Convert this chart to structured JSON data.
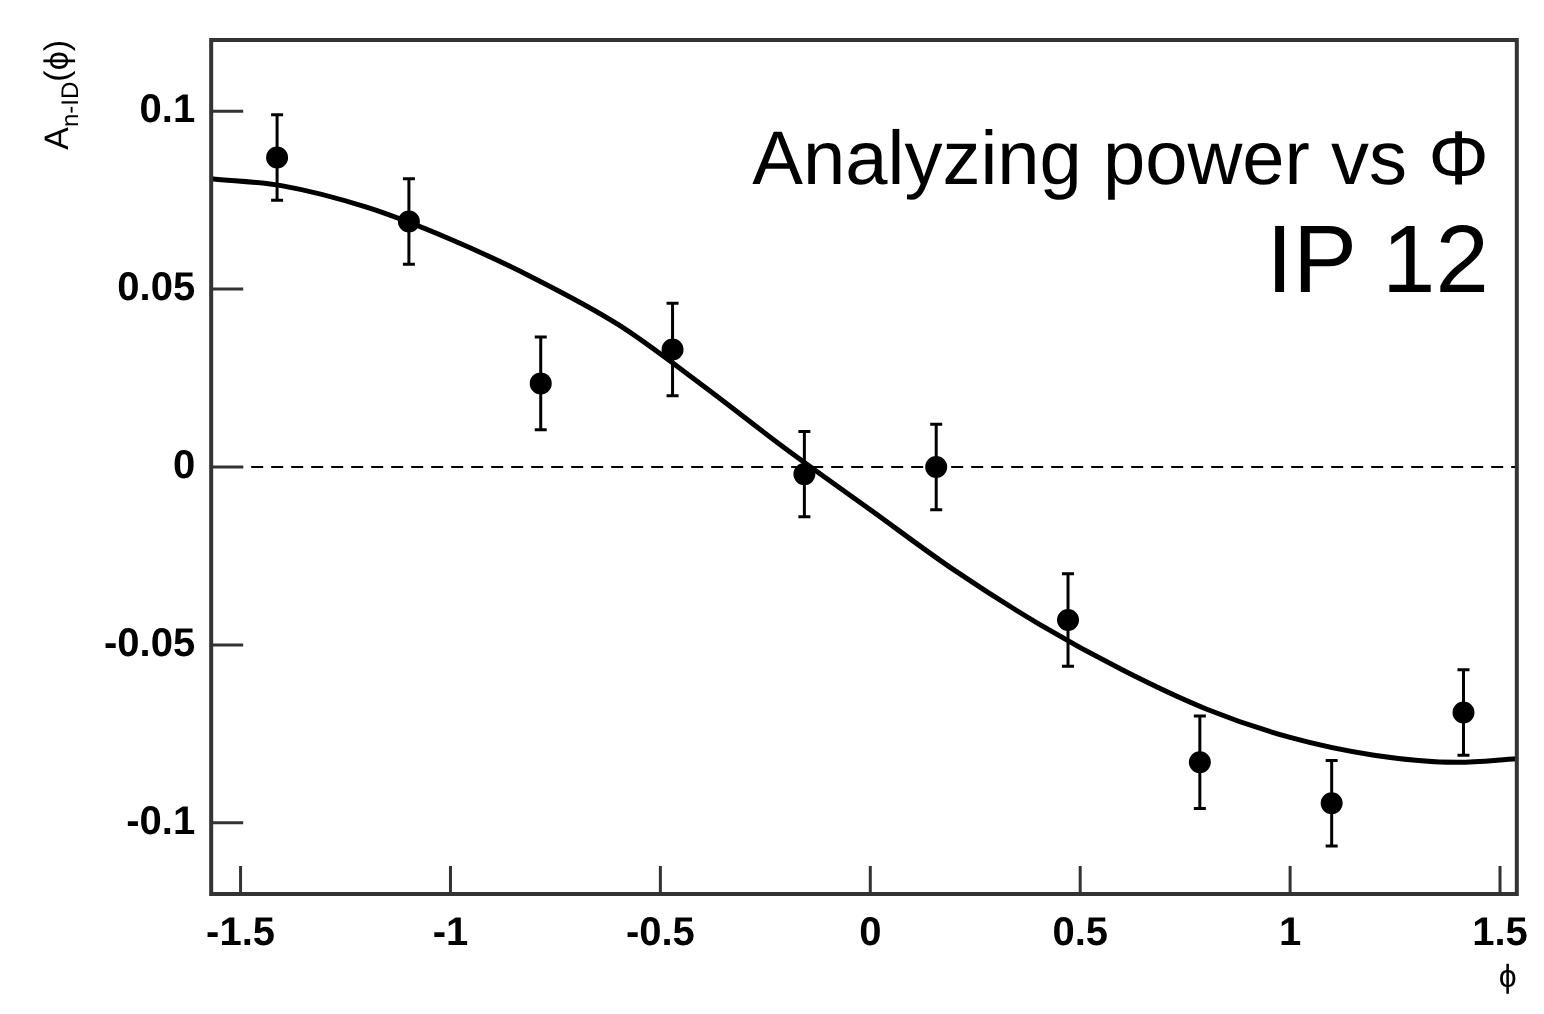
{
  "chart_data": {
    "type": "scatter",
    "xlabel": "ϕ",
    "ylabel": "A$_{n-ID}$(ϕ)",
    "xlim": [
      -1.57,
      1.54
    ],
    "ylim": [
      -0.12,
      0.12
    ],
    "xticks": [
      {
        "value": -1.5,
        "label": "-1.5"
      },
      {
        "value": -1,
        "label": "-1"
      },
      {
        "value": -0.5,
        "label": "-0.5"
      },
      0,
      0.5,
      1,
      1.5
    ],
    "yticks": [
      {
        "value": -0.1,
        "label": "-0.1"
      },
      {
        "value": -0.05,
        "label": "-0.05"
      },
      0,
      0.05,
      0.1
    ],
    "grid": false,
    "legend": false,
    "marker": "circle",
    "ref_lines": [
      {
        "axis": "y",
        "value": 0,
        "line_style": "dashed",
        "color": "#000000"
      }
    ],
    "annotations": [
      "Analyzing power vs Φ",
      "IP 12"
    ],
    "series": [
      {
        "color": "#000000",
        "x": [
          -1.413,
          -1.099,
          -0.785,
          -0.471,
          -0.157,
          0.157,
          0.471,
          0.785,
          1.099,
          1.413
        ],
        "values": [
          0.087,
          0.069,
          0.0235,
          0.033,
          -0.002,
          0,
          -0.043,
          -0.083,
          -0.0945,
          -0.069
        ],
        "errors": [
          0.012,
          0.012,
          0.013,
          0.013,
          0.012,
          0.012,
          0.013,
          0.013,
          0.012,
          0.012
        ]
      },
      {
        "type": "line",
        "color": "#000000",
        "marker": "none",
        "x": [
          -1.57,
          -1.4,
          -1.2,
          -1.0,
          -0.8,
          -0.6,
          -0.4,
          -0.2,
          0,
          0.2,
          0.4,
          0.6,
          0.8,
          1.0,
          1.2,
          1.4,
          1.54
        ],
        "values": [
          0.081,
          0.079,
          0.073,
          0.064,
          0.053,
          0.04,
          0.023,
          0.005,
          -0.012,
          -0.029,
          -0.044,
          -0.057,
          -0.068,
          -0.076,
          -0.081,
          -0.083,
          -0.082
        ]
      }
    ]
  }
}
